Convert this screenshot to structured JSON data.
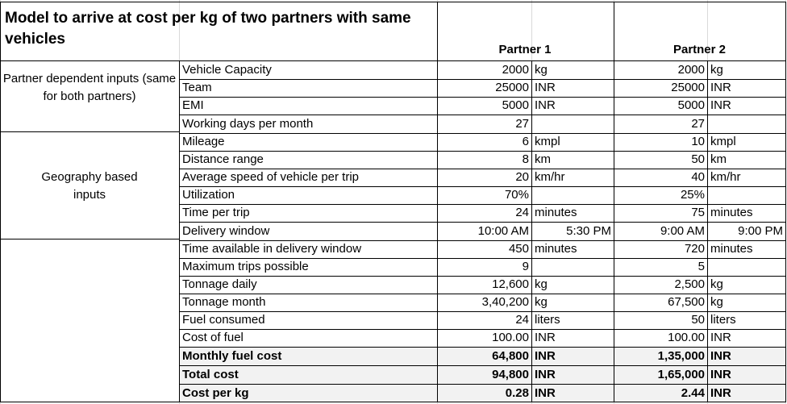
{
  "title": "Model to arrive at cost per kg of two partners with same vehicles",
  "columns": {
    "p1": "Partner 1",
    "p2": "Partner 2"
  },
  "groups": {
    "partner": "Partner dependent inputs (same for both partners)",
    "geo": "Geography based inputs"
  },
  "rows": [
    {
      "label": "Vehicle Capacity",
      "p1v": "2000",
      "p1u": "kg",
      "p2v": "2000",
      "p2u": "kg"
    },
    {
      "label": "Team",
      "p1v": "25000",
      "p1u": "INR",
      "p2v": "25000",
      "p2u": "INR"
    },
    {
      "label": "EMI",
      "p1v": "5000",
      "p1u": "INR",
      "p2v": "5000",
      "p2u": "INR"
    },
    {
      "label": "Working days per month",
      "p1v": "27",
      "p1u": "",
      "p2v": "27",
      "p2u": ""
    },
    {
      "label": "Mileage",
      "p1v": "6",
      "p1u": "kmpl",
      "p2v": "10",
      "p2u": "kmpl"
    },
    {
      "label": "Distance range",
      "p1v": "8",
      "p1u": "km",
      "p2v": "50",
      "p2u": "km"
    },
    {
      "label": "Average speed of vehicle per trip",
      "p1v": "20",
      "p1u": "km/hr",
      "p2v": "40",
      "p2u": "km/hr"
    },
    {
      "label": "Utilization",
      "p1v": "70%",
      "p1u": "",
      "p2v": "25%",
      "p2u": ""
    },
    {
      "label": "Time per trip",
      "p1v": "24",
      "p1u": "minutes",
      "p2v": "75",
      "p2u": "minutes"
    },
    {
      "label": "Delivery window",
      "p1v": "10:00 AM",
      "p1u": "5:30 PM",
      "p2v": "9:00 AM",
      "p2u": "9:00 PM"
    },
    {
      "label": "Time available in delivery window",
      "p1v": "450",
      "p1u": "minutes",
      "p2v": "720",
      "p2u": "minutes"
    },
    {
      "label": "Maximum trips possible",
      "p1v": "9",
      "p1u": "",
      "p2v": "5",
      "p2u": ""
    },
    {
      "label": "Tonnage daily",
      "p1v": "12,600",
      "p1u": "kg",
      "p2v": "2,500",
      "p2u": "kg"
    },
    {
      "label": "Tonnage month",
      "p1v": "3,40,200",
      "p1u": "kg",
      "p2v": "67,500",
      "p2u": "kg"
    },
    {
      "label": "Fuel consumed",
      "p1v": "24",
      "p1u": "liters",
      "p2v": "50",
      "p2u": "liters"
    },
    {
      "label": "Cost of fuel",
      "p1v": "100.00",
      "p1u": "INR",
      "p2v": "100.00",
      "p2u": "INR"
    },
    {
      "label": "Monthly fuel cost",
      "p1v": "64,800",
      "p1u": "INR",
      "p2v": "1,35,000",
      "p2u": "INR",
      "bold": true
    },
    {
      "label": "Total cost",
      "p1v": "94,800",
      "p1u": "INR",
      "p2v": "1,65,000",
      "p2u": "INR",
      "bold": true
    },
    {
      "label": "Cost per kg",
      "p1v": "0.28",
      "p1u": "INR",
      "p2v": "2.44",
      "p2u": "INR",
      "bold": true
    }
  ]
}
